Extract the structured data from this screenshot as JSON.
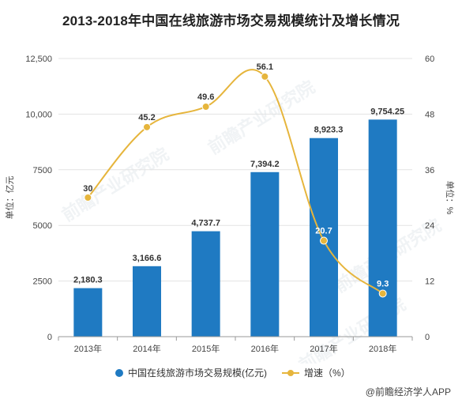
{
  "title": "2013-2018年中国在线旅游市场交易规模统计及增长情况",
  "source": "@前瞻经济学人APP",
  "watermark": "前瞻产业研究院",
  "colors": {
    "bar": "#1f7ac2",
    "line": "#e6b53c",
    "grid": "#e3e3e3",
    "axis": "#999999",
    "text": "#444444"
  },
  "chart_data": {
    "type": "bar+line",
    "categories": [
      "2013年",
      "2014年",
      "2015年",
      "2016年",
      "2017年",
      "2018年"
    ],
    "series": [
      {
        "name": "中国在线旅游市场交易规模(亿元)",
        "type": "bar",
        "axis": "left",
        "values": [
          2180.3,
          3166.6,
          4737.7,
          7394.2,
          8923.3,
          9754.25
        ],
        "labels": [
          "2,180.3",
          "3,166.6",
          "4,737.7",
          "7,394.2",
          "8,923.3",
          "9,754.25"
        ]
      },
      {
        "name": "增速（%）",
        "type": "line",
        "axis": "right",
        "values": [
          30,
          45.2,
          49.6,
          56.1,
          20.7,
          9.3
        ],
        "labels": [
          "30",
          "45.2",
          "49.6",
          "56.1",
          "20.7",
          "9.3"
        ]
      }
    ],
    "y_left": {
      "label": "单位：亿元",
      "min": 0,
      "max": 12500,
      "ticks": [
        0,
        2500,
        5000,
        7500,
        10000,
        12500
      ],
      "tick_labels": [
        "0",
        "2500",
        "5000",
        "7500",
        "10,000",
        "12,500"
      ]
    },
    "y_right": {
      "label": "单位：%",
      "min": 0,
      "max": 60,
      "ticks": [
        0,
        12,
        24,
        36,
        48,
        60
      ],
      "tick_labels": [
        "0",
        "12",
        "24",
        "36",
        "48",
        "60"
      ]
    },
    "grid": true,
    "legend": "bottom"
  }
}
